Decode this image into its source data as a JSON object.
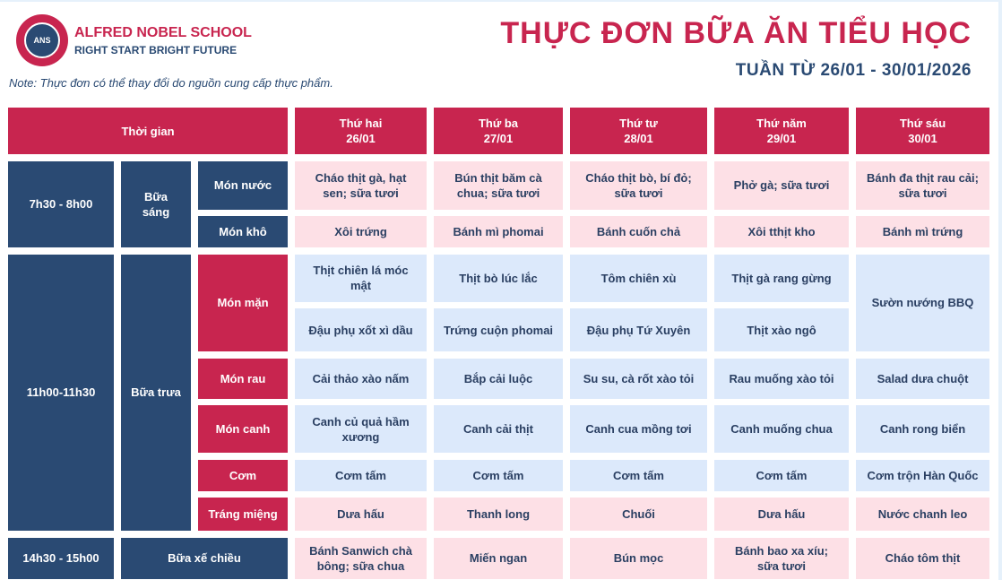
{
  "header": {
    "school": "ALFRED NOBEL SCHOOL",
    "slogan": "RIGHT START  BRIGHT FUTURE",
    "logo_text": "ANS",
    "note": "Note: Thực đơn có thể thay đổi do nguồn cung cấp thực phẩm.",
    "title": "THỰC ĐƠN BỮA ĂN TIỂU HỌC",
    "week": "TUẦN TỪ 26/01 - 30/01/2026"
  },
  "table": {
    "time_header": "Thời gian",
    "days": [
      {
        "name": "Thứ hai",
        "date": "26/01"
      },
      {
        "name": "Thứ ba",
        "date": "27/01"
      },
      {
        "name": "Thứ tư",
        "date": "28/01"
      },
      {
        "name": "Thứ năm",
        "date": "29/01"
      },
      {
        "name": "Thứ sáu",
        "date": "30/01"
      }
    ],
    "times": [
      "7h30 - 8h00",
      "11h00-11h30",
      "14h30 - 15h00"
    ],
    "meals": [
      "Bữa sáng",
      "Bữa trưa",
      "Bữa xế chiều"
    ],
    "types": [
      "Món nước",
      "Món khô",
      "Món mặn",
      "Món rau",
      "Món canh",
      "Cơm",
      "Tráng miệng"
    ],
    "mon_nuoc": [
      "Cháo thịt gà, hạt sen; sữa tươi",
      "Bún thịt băm cà chua; sữa tươi",
      "Cháo thịt bò, bí đỏ; sữa tươi",
      "Phở gà; sữa tươi",
      "Bánh đa thịt rau cải; sữa tươi"
    ],
    "mon_kho": [
      "Xôi trứng",
      "Bánh mì phomai",
      "Bánh cuốn chả",
      "Xôi tthịt kho",
      "Bánh mì trứng"
    ],
    "mon_man_1": [
      "Thịt chiên lá móc mật",
      "Thịt bò lúc lắc",
      "Tôm chiên xù",
      "Thịt gà rang gừng",
      "Sườn nướng BBQ"
    ],
    "mon_man_2": [
      "Đậu phụ xốt xì dầu",
      "Trứng cuộn phomai",
      "Đậu phụ Tứ Xuyên",
      "Thịt xào ngô"
    ],
    "mon_rau": [
      "Cải thảo xào nấm",
      "Bắp cải luộc",
      "Su su, cà rốt xào tỏi",
      "Rau muống xào tỏi",
      "Salad dưa chuột"
    ],
    "mon_canh": [
      "Canh củ quả hầm xương",
      "Canh cải thịt",
      "Canh cua mồng tơi",
      "Canh muống chua",
      "Canh rong biển"
    ],
    "com": [
      "Cơm tấm",
      "Cơm tấm",
      "Cơm tấm",
      "Cơm tấm",
      "Cơm trộn Hàn Quốc"
    ],
    "trang_mieng": [
      "Dưa hấu",
      "Thanh long",
      "Chuối",
      "Dưa hấu",
      "Nước chanh leo"
    ],
    "xe_chieu": [
      "Bánh Sanwich chà bông; sữa chua",
      "Miến ngan",
      "Bún mọc",
      "Bánh bao xa xíu; sữa tươi",
      "Cháo tôm thịt"
    ]
  }
}
